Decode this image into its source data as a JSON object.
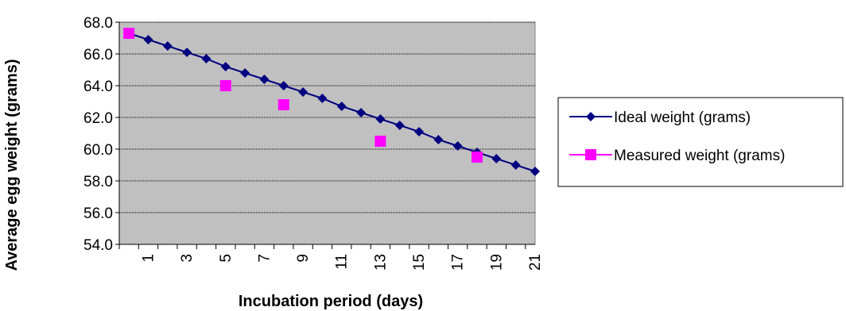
{
  "chart_data": {
    "type": "line",
    "xlabel": "Incubation period (days)",
    "ylabel": "Average egg weight (grams)",
    "ylim": [
      54.0,
      68.0
    ],
    "y_ticks": [
      "54.0",
      "56.0",
      "58.0",
      "60.0",
      "62.0",
      "64.0",
      "66.0",
      "68.0"
    ],
    "x_ticks": [
      "1",
      "3",
      "5",
      "7",
      "9",
      "11",
      "13",
      "15",
      "17",
      "19",
      "21"
    ],
    "grid": "horizontal",
    "legend_position": "right",
    "plot_background": "#c0c0c0",
    "series": [
      {
        "name": "Ideal weight (grams)",
        "color": "#000080",
        "marker": "diamond",
        "x": [
          0,
          1,
          2,
          3,
          4,
          5,
          6,
          7,
          8,
          9,
          10,
          11,
          12,
          13,
          14,
          15,
          16,
          17,
          18,
          19,
          20,
          21
        ],
        "values": [
          67.3,
          66.9,
          66.5,
          66.1,
          65.7,
          65.2,
          64.8,
          64.4,
          64.0,
          63.6,
          63.2,
          62.7,
          62.3,
          61.9,
          61.5,
          61.1,
          60.6,
          60.2,
          59.8,
          59.4,
          59.0,
          58.6
        ]
      },
      {
        "name": "Measured weight (grams)",
        "color": "#ff00ff",
        "marker": "square",
        "x": [
          0,
          5,
          8,
          13,
          18
        ],
        "values": [
          67.3,
          64.0,
          62.8,
          60.5,
          59.5
        ]
      }
    ]
  }
}
